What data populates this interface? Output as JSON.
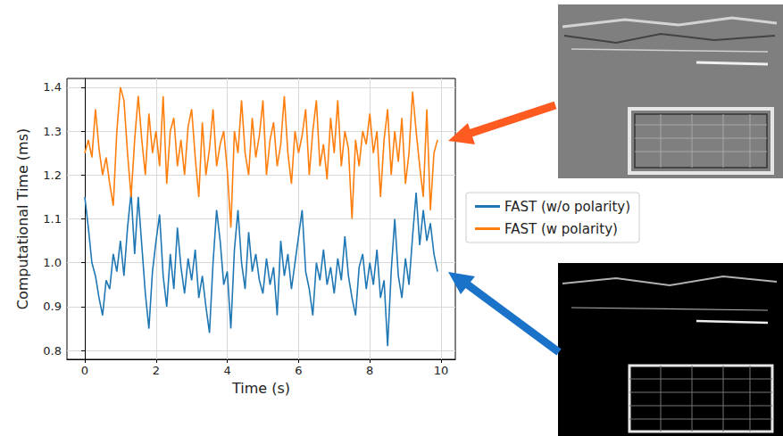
{
  "chart_data": {
    "type": "line",
    "xlabel": "Time (s)",
    "ylabel": "Computational Time (ms)",
    "x": [
      0,
      0.1,
      0.2,
      0.3,
      0.4,
      0.5,
      0.6,
      0.7,
      0.8,
      0.9,
      1,
      1.1,
      1.2,
      1.3,
      1.4,
      1.5,
      1.6,
      1.7,
      1.8,
      1.9,
      2,
      2.1,
      2.2,
      2.3,
      2.4,
      2.5,
      2.6,
      2.7,
      2.8,
      2.9,
      3,
      3.1,
      3.2,
      3.3,
      3.4,
      3.5,
      3.6,
      3.7,
      3.8,
      3.9,
      4,
      4.1,
      4.2,
      4.3,
      4.4,
      4.5,
      4.6,
      4.7,
      4.8,
      4.9,
      5,
      5.1,
      5.2,
      5.3,
      5.4,
      5.5,
      5.6,
      5.7,
      5.8,
      5.9,
      6,
      6.1,
      6.2,
      6.3,
      6.4,
      6.5,
      6.6,
      6.7,
      6.8,
      6.9,
      7,
      7.1,
      7.2,
      7.3,
      7.4,
      7.5,
      7.6,
      7.7,
      7.8,
      7.9,
      8,
      8.1,
      8.2,
      8.3,
      8.4,
      8.5,
      8.6,
      8.7,
      8.8,
      8.9,
      9,
      9.1,
      9.2,
      9.3,
      9.4,
      9.5,
      9.6,
      9.7,
      9.8,
      9.9
    ],
    "series": [
      {
        "name": "FAST (w/o polarity)",
        "color": "#1f77b4",
        "values": [
          1.15,
          1.08,
          1.0,
          0.97,
          0.92,
          0.88,
          0.96,
          0.94,
          1.02,
          0.98,
          1.05,
          0.97,
          1.08,
          1.16,
          1.02,
          1.15,
          1.04,
          0.93,
          0.85,
          0.98,
          1.05,
          1.11,
          0.97,
          0.9,
          1.02,
          0.94,
          1.08,
          0.99,
          0.93,
          1.01,
          0.96,
          1.03,
          0.92,
          0.97,
          0.9,
          0.84,
          1.0,
          1.12,
          1.05,
          0.95,
          0.98,
          0.85,
          1.03,
          1.12,
          1.0,
          0.94,
          1.07,
          0.98,
          1.02,
          0.96,
          0.93,
          1.01,
          0.95,
          0.99,
          0.88,
          1.05,
          0.97,
          1.02,
          0.94,
          1.0,
          1.06,
          1.12,
          0.98,
          0.94,
          0.88,
          1.0,
          0.96,
          1.03,
          0.95,
          0.99,
          0.93,
          1.01,
          0.96,
          1.06,
          0.97,
          0.92,
          0.88,
          0.99,
          1.02,
          0.94,
          1.0,
          0.95,
          1.03,
          0.92,
          0.96,
          0.81,
          0.98,
          1.1,
          0.97,
          0.92,
          1.01,
          0.95,
          1.06,
          1.16,
          1.04,
          1.12,
          1.05,
          1.09,
          1.02,
          0.98
        ]
      },
      {
        "name": "FAST (w polarity)",
        "color": "#ff7f0e",
        "values": [
          1.25,
          1.28,
          1.24,
          1.35,
          1.26,
          1.2,
          1.24,
          1.18,
          1.13,
          1.3,
          1.4,
          1.37,
          1.25,
          1.15,
          1.28,
          1.38,
          1.28,
          1.2,
          1.34,
          1.25,
          1.3,
          1.22,
          1.38,
          1.18,
          1.3,
          1.33,
          1.22,
          1.28,
          1.2,
          1.31,
          1.35,
          1.24,
          1.15,
          1.32,
          1.2,
          1.26,
          1.35,
          1.22,
          1.27,
          1.3,
          1.21,
          1.08,
          1.3,
          1.25,
          1.37,
          1.25,
          1.2,
          1.33,
          1.24,
          1.29,
          1.37,
          1.2,
          1.28,
          1.32,
          1.22,
          1.27,
          1.38,
          1.25,
          1.18,
          1.3,
          1.25,
          1.29,
          1.35,
          1.2,
          1.3,
          1.37,
          1.22,
          1.27,
          1.19,
          1.33,
          1.25,
          1.37,
          1.22,
          1.3,
          1.26,
          1.1,
          1.28,
          1.22,
          1.3,
          1.27,
          1.34,
          1.25,
          1.3,
          1.15,
          1.28,
          1.35,
          1.2,
          1.3,
          1.23,
          1.33,
          1.18,
          1.25,
          1.39,
          1.3,
          1.22,
          1.15,
          1.35,
          1.12,
          1.25,
          1.28
        ]
      }
    ],
    "xlim": [
      -0.5,
      10.4
    ],
    "xticks": [
      0,
      2,
      4,
      6,
      8,
      10
    ],
    "ylim": [
      0.78,
      1.42
    ],
    "yticks": [
      0.8,
      0.9,
      {
        "value": 1,
        "label": "1.0"
      },
      1.1,
      1.2,
      1.3,
      1.4
    ],
    "grid": true,
    "legend": "right"
  }
}
